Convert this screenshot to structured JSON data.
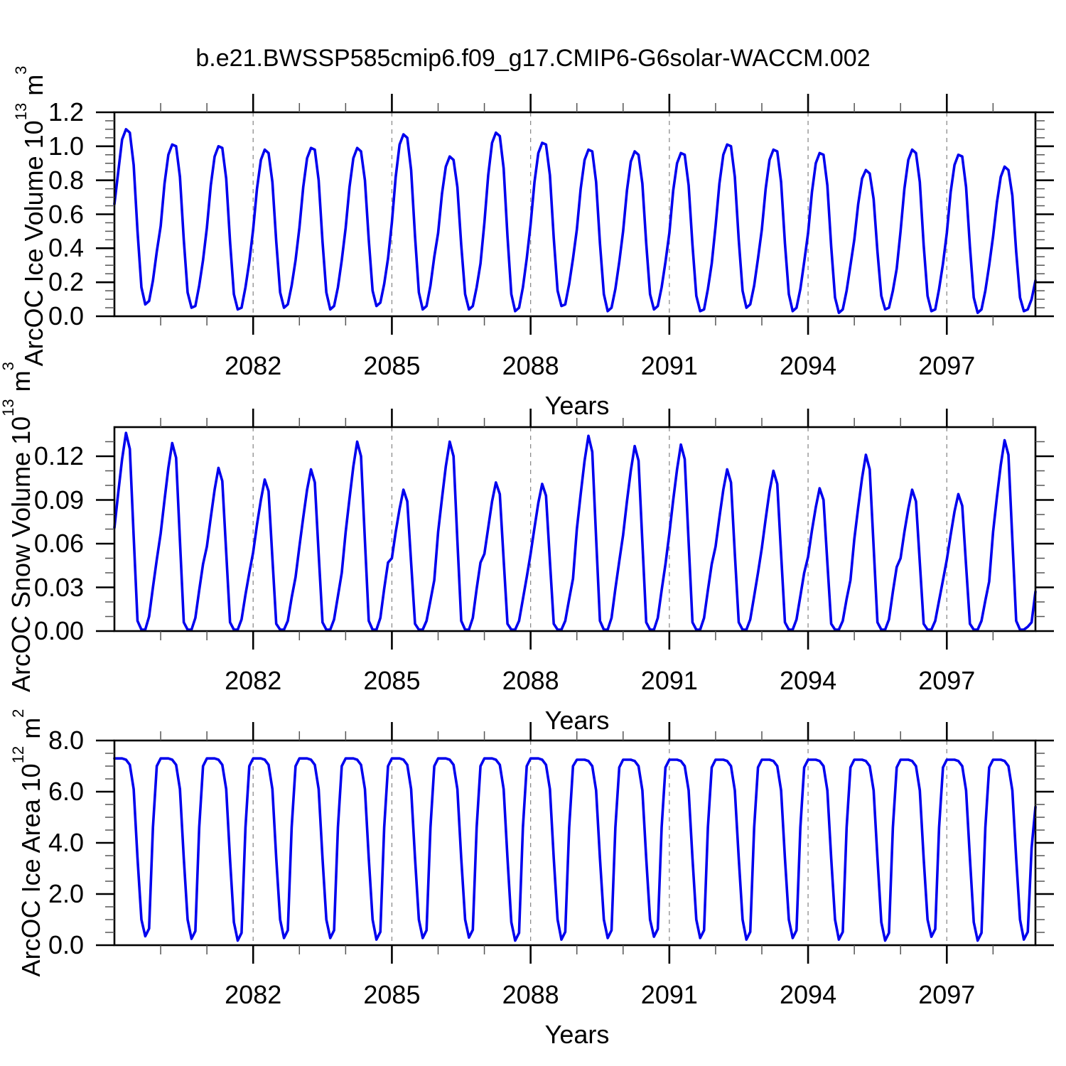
{
  "title": "b.e21.BWSSP585cmip6.f09_g17.CMIP6-G6solar-WACCM.002",
  "chart_data": {
    "type": "line",
    "line_color": "#0000EE",
    "grid_color": "#8C8C8C",
    "frame_color": "#000000",
    "minor_tick_color": "#555555",
    "x_axis": {
      "label": "Years",
      "start_year": 2079,
      "end_year": 2099,
      "points_per_year": 12,
      "major_ticks": [
        2082,
        2085,
        2088,
        2091,
        2094,
        2097
      ],
      "minor_tick_every_years": 1,
      "gridlines": "dashed-at-major-ticks"
    },
    "panels": [
      {
        "id": "ice-volume",
        "ylabel": {
          "prefix": "ArcOC Ice Volume 10",
          "sup1": "13",
          "mid": " m",
          "sup2": "3"
        },
        "xlabel": "Years",
        "ymin": 0.0,
        "ymax": 1.2,
        "ymajor_step": 0.2,
        "yminor_step": 0.05,
        "ytick_values": [
          0.0,
          0.2,
          0.4,
          0.6,
          0.8,
          1.0,
          1.2
        ],
        "ytick_labels": [
          "0.0",
          "0.2",
          "0.4",
          "0.6",
          "0.8",
          "1.0",
          "1.2"
        ],
        "values": [
          0.66,
          0.85,
          1.04,
          1.1,
          1.08,
          0.89,
          0.5,
          0.17,
          0.07,
          0.09,
          0.21,
          0.38,
          0.53,
          0.78,
          0.95,
          1.01,
          1.0,
          0.82,
          0.45,
          0.14,
          0.05,
          0.06,
          0.18,
          0.33,
          0.52,
          0.77,
          0.94,
          1.0,
          0.99,
          0.81,
          0.44,
          0.13,
          0.04,
          0.05,
          0.17,
          0.32,
          0.51,
          0.75,
          0.92,
          0.98,
          0.96,
          0.79,
          0.44,
          0.14,
          0.05,
          0.07,
          0.18,
          0.33,
          0.52,
          0.76,
          0.93,
          0.99,
          0.98,
          0.8,
          0.44,
          0.14,
          0.04,
          0.06,
          0.17,
          0.33,
          0.52,
          0.76,
          0.93,
          0.99,
          0.97,
          0.8,
          0.45,
          0.15,
          0.06,
          0.08,
          0.19,
          0.34,
          0.55,
          0.82,
          1.01,
          1.07,
          1.05,
          0.86,
          0.47,
          0.14,
          0.04,
          0.06,
          0.18,
          0.35,
          0.49,
          0.72,
          0.88,
          0.94,
          0.92,
          0.76,
          0.42,
          0.13,
          0.04,
          0.06,
          0.17,
          0.31,
          0.55,
          0.83,
          1.02,
          1.08,
          1.06,
          0.87,
          0.47,
          0.13,
          0.03,
          0.05,
          0.17,
          0.34,
          0.54,
          0.79,
          0.96,
          1.02,
          1.01,
          0.83,
          0.46,
          0.15,
          0.06,
          0.07,
          0.19,
          0.34,
          0.51,
          0.75,
          0.92,
          0.98,
          0.97,
          0.79,
          0.43,
          0.13,
          0.03,
          0.05,
          0.16,
          0.32,
          0.5,
          0.74,
          0.91,
          0.97,
          0.95,
          0.78,
          0.43,
          0.13,
          0.04,
          0.06,
          0.17,
          0.32,
          0.49,
          0.74,
          0.9,
          0.96,
          0.95,
          0.77,
          0.42,
          0.12,
          0.03,
          0.04,
          0.16,
          0.31,
          0.53,
          0.78,
          0.95,
          1.01,
          1.0,
          0.82,
          0.45,
          0.15,
          0.05,
          0.07,
          0.18,
          0.34,
          0.51,
          0.75,
          0.92,
          0.98,
          0.97,
          0.79,
          0.43,
          0.13,
          0.03,
          0.05,
          0.16,
          0.32,
          0.49,
          0.73,
          0.9,
          0.96,
          0.95,
          0.77,
          0.41,
          0.11,
          0.02,
          0.04,
          0.15,
          0.3,
          0.45,
          0.66,
          0.81,
          0.86,
          0.84,
          0.69,
          0.38,
          0.12,
          0.04,
          0.05,
          0.15,
          0.28,
          0.5,
          0.75,
          0.92,
          0.98,
          0.96,
          0.79,
          0.42,
          0.12,
          0.03,
          0.04,
          0.16,
          0.31,
          0.49,
          0.73,
          0.89,
          0.95,
          0.94,
          0.76,
          0.41,
          0.11,
          0.02,
          0.04,
          0.15,
          0.3,
          0.47,
          0.67,
          0.82,
          0.88,
          0.86,
          0.71,
          0.38,
          0.11,
          0.03,
          0.04,
          0.1,
          0.21
        ]
      },
      {
        "id": "snow-volume",
        "ylabel": {
          "prefix": "ArcOC Snow Volume 10",
          "sup1": "13",
          "mid": " m",
          "sup2": "3"
        },
        "xlabel": "Years",
        "ymin": 0.0,
        "ymax": 0.14,
        "ymajor_step": 0.03,
        "yminor_step": 0.01,
        "ytick_values": [
          0.0,
          0.03,
          0.06,
          0.09,
          0.12
        ],
        "ytick_labels": [
          "0.00",
          "0.03",
          "0.06",
          "0.09",
          "0.12"
        ],
        "values": [
          0.071,
          0.095,
          0.118,
          0.136,
          0.125,
          0.065,
          0.007,
          0.001,
          0.001,
          0.01,
          0.03,
          0.049,
          0.067,
          0.09,
          0.112,
          0.129,
          0.119,
          0.062,
          0.006,
          0.001,
          0.001,
          0.009,
          0.028,
          0.046,
          0.058,
          0.078,
          0.097,
          0.112,
          0.103,
          0.054,
          0.006,
          0.001,
          0.001,
          0.008,
          0.025,
          0.04,
          0.054,
          0.073,
          0.09,
          0.104,
          0.096,
          0.05,
          0.005,
          0.001,
          0.001,
          0.007,
          0.023,
          0.037,
          0.058,
          0.078,
          0.097,
          0.111,
          0.102,
          0.053,
          0.006,
          0.001,
          0.001,
          0.008,
          0.024,
          0.04,
          0.068,
          0.091,
          0.113,
          0.13,
          0.12,
          0.062,
          0.007,
          0.001,
          0.001,
          0.009,
          0.029,
          0.047,
          0.05,
          0.068,
          0.084,
          0.097,
          0.089,
          0.047,
          0.005,
          0.001,
          0.001,
          0.007,
          0.021,
          0.035,
          0.068,
          0.091,
          0.113,
          0.13,
          0.12,
          0.062,
          0.007,
          0.001,
          0.001,
          0.009,
          0.029,
          0.047,
          0.053,
          0.071,
          0.089,
          0.102,
          0.094,
          0.049,
          0.005,
          0.001,
          0.001,
          0.007,
          0.022,
          0.037,
          0.053,
          0.071,
          0.088,
          0.101,
          0.093,
          0.048,
          0.005,
          0.001,
          0.001,
          0.007,
          0.022,
          0.036,
          0.07,
          0.094,
          0.117,
          0.134,
          0.123,
          0.064,
          0.007,
          0.001,
          0.001,
          0.009,
          0.029,
          0.048,
          0.066,
          0.089,
          0.11,
          0.127,
          0.117,
          0.061,
          0.006,
          0.001,
          0.001,
          0.009,
          0.028,
          0.046,
          0.067,
          0.09,
          0.111,
          0.128,
          0.118,
          0.061,
          0.006,
          0.001,
          0.001,
          0.009,
          0.028,
          0.046,
          0.058,
          0.078,
          0.097,
          0.111,
          0.102,
          0.053,
          0.006,
          0.001,
          0.001,
          0.008,
          0.024,
          0.04,
          0.057,
          0.077,
          0.096,
          0.11,
          0.101,
          0.053,
          0.006,
          0.001,
          0.001,
          0.008,
          0.024,
          0.04,
          0.051,
          0.069,
          0.085,
          0.098,
          0.09,
          0.047,
          0.005,
          0.001,
          0.001,
          0.007,
          0.022,
          0.035,
          0.063,
          0.085,
          0.105,
          0.121,
          0.111,
          0.058,
          0.006,
          0.001,
          0.001,
          0.008,
          0.027,
          0.044,
          0.05,
          0.068,
          0.084,
          0.097,
          0.089,
          0.047,
          0.005,
          0.001,
          0.001,
          0.007,
          0.021,
          0.035,
          0.049,
          0.066,
          0.082,
          0.094,
          0.086,
          0.045,
          0.005,
          0.001,
          0.001,
          0.007,
          0.021,
          0.034,
          0.068,
          0.092,
          0.114,
          0.131,
          0.121,
          0.063,
          0.007,
          0.001,
          0.001,
          0.003,
          0.006,
          0.027
        ]
      },
      {
        "id": "ice-area",
        "ylabel": {
          "prefix": "ArcOC Ice Area 10",
          "sup1": "12",
          "mid": " m",
          "sup2": "2"
        },
        "xlabel": "Years",
        "ymin": 0.0,
        "ymax": 8.0,
        "ymajor_step": 2.0,
        "yminor_step": 0.5,
        "ytick_values": [
          0.0,
          2.0,
          4.0,
          6.0,
          8.0
        ],
        "ytick_labels": [
          "0.0",
          "2.0",
          "4.0",
          "6.0",
          "8.0"
        ],
        "values": [
          7.3,
          7.3,
          7.3,
          7.25,
          7.05,
          6.1,
          3.4,
          1.0,
          0.35,
          0.65,
          4.6,
          7.0,
          7.3,
          7.3,
          7.3,
          7.25,
          7.05,
          6.1,
          3.4,
          1.0,
          0.25,
          0.55,
          4.6,
          7.0,
          7.3,
          7.3,
          7.3,
          7.25,
          7.05,
          6.1,
          3.35,
          0.9,
          0.18,
          0.48,
          4.6,
          7.0,
          7.3,
          7.3,
          7.3,
          7.25,
          7.05,
          6.1,
          3.4,
          1.0,
          0.28,
          0.58,
          4.6,
          7.0,
          7.3,
          7.3,
          7.3,
          7.25,
          7.05,
          6.1,
          3.4,
          1.0,
          0.28,
          0.58,
          4.6,
          7.0,
          7.3,
          7.3,
          7.3,
          7.25,
          7.05,
          6.1,
          3.4,
          1.0,
          0.22,
          0.52,
          4.6,
          7.0,
          7.3,
          7.3,
          7.3,
          7.25,
          7.05,
          6.1,
          3.4,
          1.0,
          0.28,
          0.58,
          4.6,
          7.0,
          7.3,
          7.3,
          7.3,
          7.25,
          7.05,
          6.1,
          3.4,
          1.0,
          0.3,
          0.6,
          4.6,
          7.0,
          7.3,
          7.3,
          7.3,
          7.25,
          7.05,
          6.1,
          3.4,
          0.9,
          0.18,
          0.48,
          4.6,
          7.0,
          7.3,
          7.3,
          7.3,
          7.25,
          7.05,
          6.1,
          3.4,
          1.0,
          0.22,
          0.52,
          4.6,
          7.0,
          7.25,
          7.25,
          7.25,
          7.2,
          7.0,
          6.05,
          3.4,
          1.0,
          0.28,
          0.58,
          4.6,
          6.95,
          7.25,
          7.25,
          7.25,
          7.2,
          7.0,
          6.05,
          3.4,
          1.0,
          0.33,
          0.63,
          4.6,
          6.95,
          7.25,
          7.25,
          7.25,
          7.2,
          7.0,
          6.05,
          3.4,
          1.0,
          0.28,
          0.58,
          4.6,
          6.95,
          7.25,
          7.25,
          7.25,
          7.2,
          7.0,
          6.05,
          3.4,
          1.0,
          0.22,
          0.52,
          4.6,
          6.95,
          7.25,
          7.25,
          7.25,
          7.2,
          7.0,
          6.05,
          3.4,
          1.0,
          0.28,
          0.58,
          4.6,
          6.95,
          7.25,
          7.25,
          7.25,
          7.2,
          7.0,
          6.05,
          3.4,
          1.0,
          0.22,
          0.52,
          4.6,
          6.95,
          7.25,
          7.25,
          7.25,
          7.2,
          7.0,
          6.05,
          3.4,
          0.9,
          0.18,
          0.48,
          4.6,
          6.95,
          7.25,
          7.25,
          7.25,
          7.2,
          7.0,
          6.05,
          3.4,
          1.0,
          0.33,
          0.63,
          4.6,
          6.95,
          7.25,
          7.25,
          7.25,
          7.2,
          7.0,
          6.05,
          3.4,
          0.9,
          0.18,
          0.48,
          4.6,
          6.95,
          7.25,
          7.25,
          7.25,
          7.2,
          7.0,
          6.05,
          3.4,
          1.0,
          0.22,
          0.52,
          3.8,
          5.4
        ]
      }
    ]
  }
}
